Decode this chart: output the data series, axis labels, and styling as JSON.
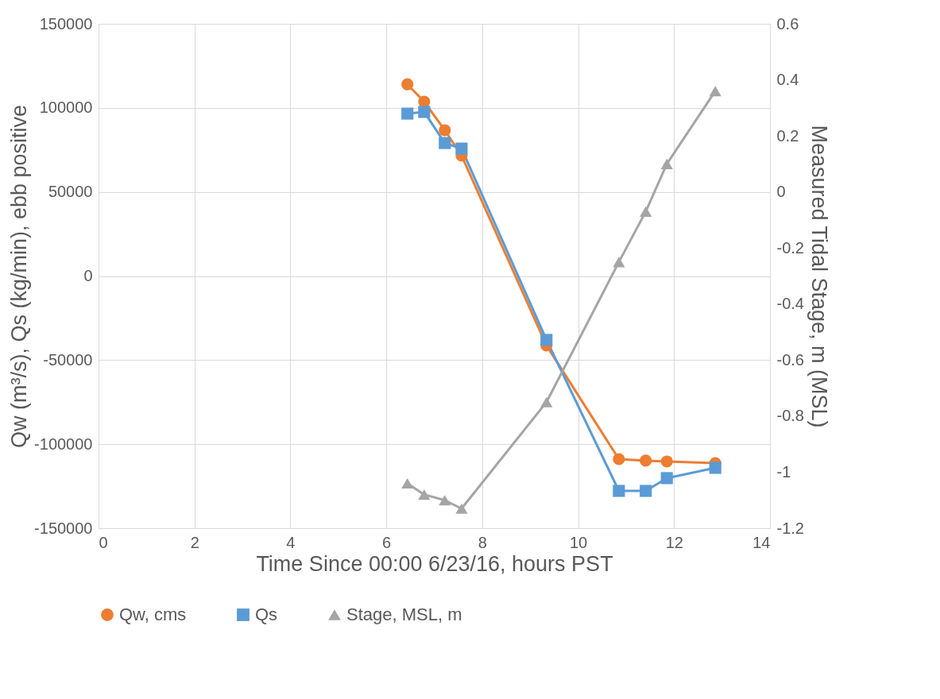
{
  "chart_data": {
    "type": "line",
    "xlabel": "Time Since 00:00 6/23/16, hours PST",
    "ylabel": "Qw (m³/s), Qs (kg/min), ebb positive",
    "y2label": "Measured Tidal Stage, m (MSL)",
    "xlim": [
      0,
      14
    ],
    "xticks": [
      0,
      2,
      4,
      6,
      8,
      10,
      12,
      14
    ],
    "ylim": [
      -150000,
      150000
    ],
    "yticks": [
      -150000,
      -100000,
      -50000,
      0,
      50000,
      100000,
      150000
    ],
    "y2lim": [
      -1.2,
      0.6
    ],
    "y2ticks": [
      -1.2,
      -1,
      -0.8,
      -0.6,
      -0.4,
      -0.2,
      0,
      0.2,
      0.4,
      0.6
    ],
    "grid": true,
    "legend": "bottom",
    "line_style": "solid",
    "series": [
      {
        "name": "Qw, cms",
        "color": "#ed7d31",
        "marker": "circle",
        "x": [
          6.44,
          6.79,
          7.22,
          7.57,
          9.34,
          10.85,
          11.41,
          11.85,
          12.86
        ],
        "values": [
          114000,
          103700,
          86700,
          71600,
          -41300,
          -108900,
          -109800,
          -110300,
          -111300
        ]
      },
      {
        "name": "Qs",
        "color": "#5b9bd5",
        "marker": "square",
        "x": [
          6.44,
          6.79,
          7.22,
          7.57,
          9.34,
          10.85,
          11.41,
          11.85,
          12.86
        ],
        "values": [
          96600,
          97600,
          79100,
          75800,
          -38000,
          -127800,
          -127800,
          -120200,
          -114100
        ]
      },
      {
        "name": "Stage, MSL, m",
        "color": "#a5a5a5",
        "marker": "triangle",
        "axis": "y2",
        "x": [
          6.44,
          6.79,
          7.22,
          7.57,
          9.34,
          10.85,
          11.41,
          11.85,
          12.86
        ],
        "values": [
          -1.04,
          -1.08,
          -1.1,
          -1.13,
          -0.75,
          -0.25,
          -0.07,
          0.1,
          0.36
        ]
      }
    ]
  }
}
